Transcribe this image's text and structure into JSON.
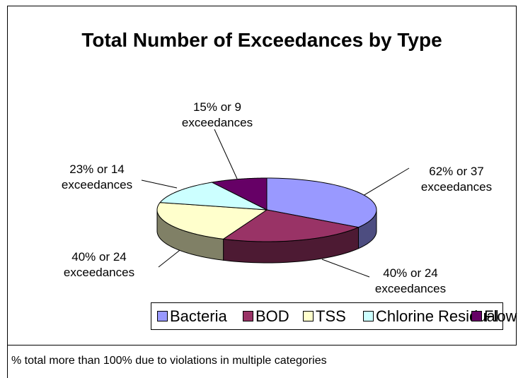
{
  "chart_data": {
    "type": "pie3d",
    "title": "Total Number of Exceedances by Type",
    "categories": [
      "Bacteria",
      "BOD",
      "TSS",
      "Chlorine Residual",
      "Flow"
    ],
    "values": [
      37,
      24,
      24,
      14,
      9
    ],
    "value_labels": [
      "62% or 37 exceedances",
      "40% or 24 exceedances",
      "40% or 24 exceedances",
      "23% or 14 exceedances",
      "15% or 9 exceedances"
    ],
    "colors": [
      "#9999ff",
      "#993366",
      "#ffffcc",
      "#ccffff",
      "#660066"
    ],
    "legend": "bottom",
    "footnote": "% total more than 100% due to violations in multiple categories"
  }
}
